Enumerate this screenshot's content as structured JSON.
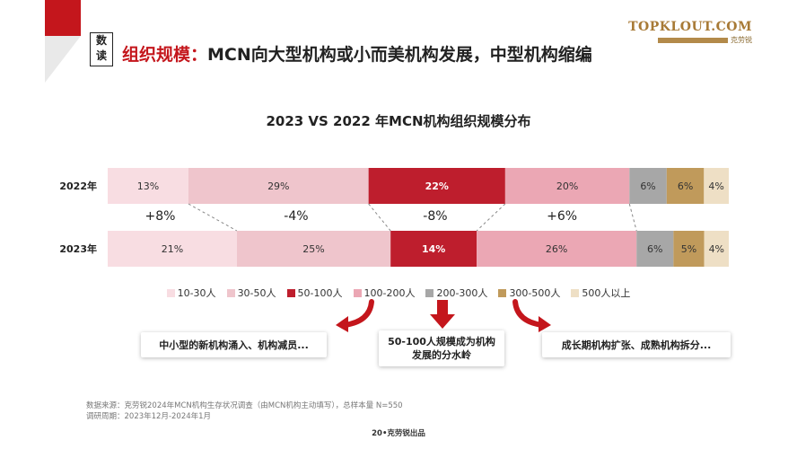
{
  "header": {
    "badge": [
      "数",
      "读"
    ],
    "title_red": "组织规模：",
    "title_black": "MCN向大型机构或小而美机构发展，中型机构缩编",
    "logo": "TOPKLOUT.COM",
    "logo_cn": "克劳锐"
  },
  "colors": {
    "brand_red": "#c4161c",
    "gold": "#a87a36",
    "segments": [
      "#f8dde2",
      "#efc5cc",
      "#be1e2d",
      "#eba7b4",
      "#a7a7a7",
      "#c09a5b",
      "#eedfc5"
    ]
  },
  "chart_data": {
    "type": "bar",
    "orientation": "horizontal-stacked-100",
    "title": "2023 VS 2022 年MCN机构组织规模分布",
    "categories": [
      "2022年",
      "2023年"
    ],
    "series": [
      {
        "name": "10-30人",
        "values": [
          13,
          21
        ]
      },
      {
        "name": "30-50人",
        "values": [
          29,
          25
        ]
      },
      {
        "name": "50-100人",
        "values": [
          22,
          14
        ]
      },
      {
        "name": "100-200人",
        "values": [
          20,
          26
        ]
      },
      {
        "name": "200-300人",
        "values": [
          6,
          6
        ]
      },
      {
        "name": "300-500人",
        "values": [
          6,
          5
        ]
      },
      {
        "name": "500人以上",
        "values": [
          4,
          4
        ]
      }
    ],
    "changes": [
      "+8%",
      "-4%",
      "-8%",
      "+6%"
    ],
    "legend_position": "bottom"
  },
  "callouts": {
    "left": "中小型的新机构涌入、机构减员...",
    "mid": [
      "50-100人规模成为机构",
      "发展的分水岭"
    ],
    "right": "成长期机构扩张、成熟机构拆分..."
  },
  "source": {
    "line1": "数据来源：克劳锐2024年MCN机构生存状况调查（由MCN机构主动填写），总样本量 N=550",
    "line2": "调研周期：2023年12月-2024年1月"
  },
  "footer": "20•克劳锐出品"
}
